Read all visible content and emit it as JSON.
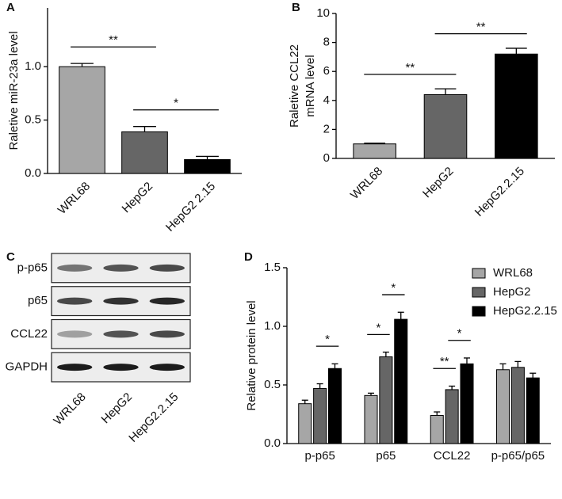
{
  "chart_data": [
    {
      "type": "bar",
      "panel": "A",
      "y_label": "Raletive miR-23a level",
      "categories": [
        "WRL68",
        "HepG2",
        "HepG2 2.15"
      ],
      "values": [
        1.0,
        0.39,
        0.13
      ],
      "errors": [
        0.03,
        0.05,
        0.03
      ],
      "colors": [
        "#a6a6a6",
        "#666666",
        "#000000"
      ],
      "ylim": [
        0,
        1.55
      ],
      "yticks": [
        {
          "value": 0,
          "label": "0.0"
        },
        {
          "value": 0.5,
          "label": "0.5"
        },
        {
          "value": 1,
          "label": "1.0"
        }
      ],
      "annotations": [
        {
          "label": "**",
          "between": [
            "WRL68",
            "HepG2"
          ]
        },
        {
          "label": "*",
          "between": [
            "HepG2",
            "HepG2 2.15"
          ]
        }
      ]
    },
    {
      "type": "bar",
      "panel": "B",
      "y_label": [
        "Raletive CCL22",
        "mRNA level"
      ],
      "categories": [
        "WRL68",
        "HepG2",
        "HepG2.2.15"
      ],
      "values": [
        1.0,
        4.4,
        7.2
      ],
      "errors": [
        0.05,
        0.4,
        0.4
      ],
      "colors": [
        "#a6a6a6",
        "#666666",
        "#000000"
      ],
      "ylim": [
        0,
        10
      ],
      "yticks": [
        0,
        2,
        4,
        6,
        8,
        10
      ],
      "annotations": [
        {
          "label": "**",
          "between": [
            "WRL68",
            "HepG2"
          ]
        },
        {
          "label": "**",
          "between": [
            "HepG2",
            "HepG2.2.15"
          ]
        }
      ]
    },
    {
      "type": "blot",
      "panel": "C",
      "rows": [
        "p-p65",
        "p65",
        "CCL22",
        "GAPDH"
      ],
      "columns": [
        "WRL68",
        "HepG2",
        "HepG2.2.15"
      ]
    },
    {
      "type": "grouped_bar",
      "panel": "D",
      "y_label": "Relative protein level",
      "categories": [
        "p-p65",
        "p65",
        "CCL22",
        "p-p65/p65"
      ],
      "series": [
        {
          "name": "WRL68",
          "color": "#a6a6a6",
          "values": [
            0.34,
            0.41,
            0.24,
            0.63
          ],
          "errors": [
            0.03,
            0.02,
            0.03,
            0.05
          ]
        },
        {
          "name": "HepG2",
          "color": "#666666",
          "values": [
            0.47,
            0.74,
            0.46,
            0.65
          ],
          "errors": [
            0.04,
            0.04,
            0.03,
            0.05
          ]
        },
        {
          "name": "HepG2.2.15",
          "color": "#000000",
          "values": [
            0.64,
            1.06,
            0.68,
            0.56
          ],
          "errors": [
            0.04,
            0.06,
            0.05,
            0.04
          ]
        }
      ],
      "ylim": [
        0,
        1.5
      ],
      "yticks": [
        {
          "value": 0,
          "label": "0.0"
        },
        {
          "value": 0.5,
          "label": "0.5"
        },
        {
          "value": 1,
          "label": "1.0"
        },
        {
          "value": 1.5,
          "label": "1.5"
        }
      ],
      "legend": "top-right",
      "annotations": [
        {
          "label": "*",
          "category": "p-p65",
          "between": [
            "HepG2",
            "HepG2.2.15"
          ]
        },
        {
          "label": "*",
          "category": "p65",
          "between": [
            "WRL68",
            "HepG2"
          ]
        },
        {
          "label": "*",
          "category": "p65",
          "between": [
            "HepG2",
            "HepG2.2.15"
          ]
        },
        {
          "label": "**",
          "category": "CCL22",
          "between": [
            "WRL68",
            "HepG2"
          ]
        },
        {
          "label": "*",
          "category": "CCL22",
          "between": [
            "HepG2",
            "HepG2.2.15"
          ]
        }
      ]
    }
  ]
}
